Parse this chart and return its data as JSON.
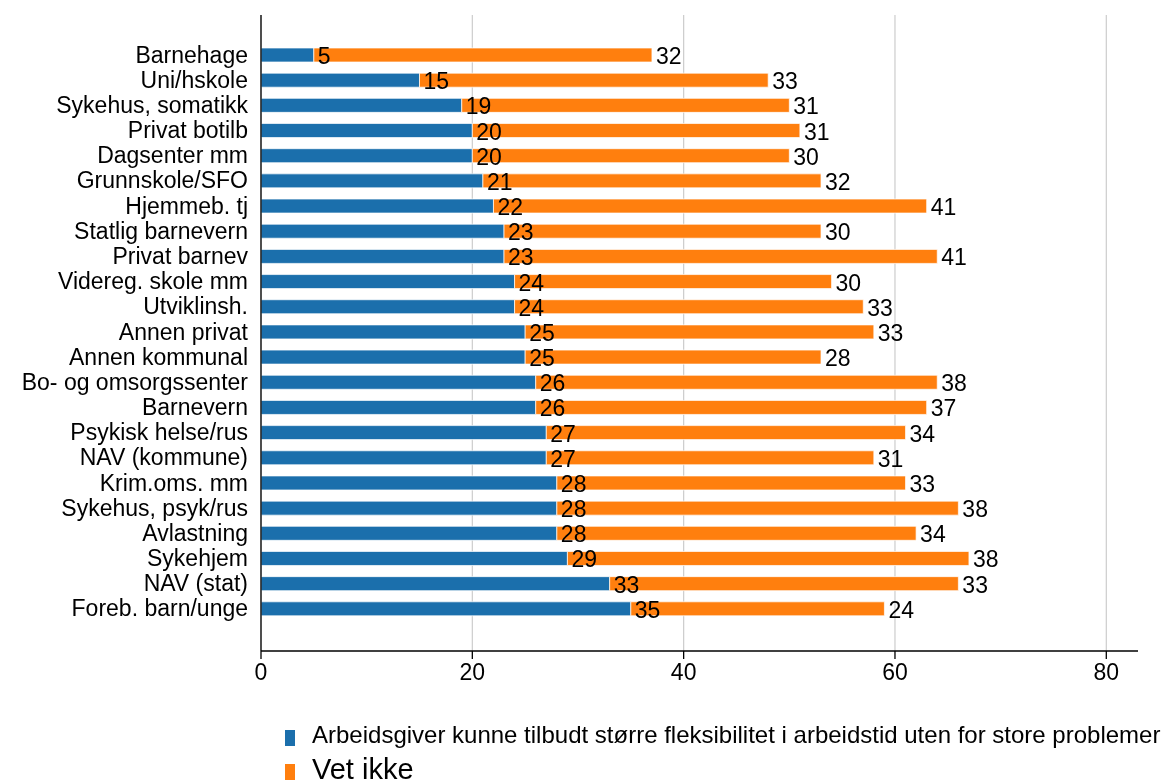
{
  "chart_data": {
    "type": "bar",
    "orientation": "horizontal",
    "stacked": true,
    "categories": [
      "Barnehage",
      "Uni/hskole",
      "Sykehus, somatikk",
      "Privat botilb",
      "Dagsenter mm",
      "Grunnskole/SFO",
      "Hjemmeb. tj",
      "Statlig barnevern",
      "Privat barnev",
      "Videreg. skole mm",
      "Utviklinsh.",
      "Annen privat",
      "Annen kommunal",
      "Bo- og omsorgssenter",
      "Barnevern",
      "Psykisk helse/rus",
      "NAV (kommune)",
      "Krim.oms. mm",
      "Sykehus, psyk/rus",
      "Avlastning",
      "Sykehjem",
      "NAV (stat)",
      "Foreb. barn/unge"
    ],
    "series": [
      {
        "name": "Arbeidsgiver kunne tilbudt større fleksibilitet i arbeidstid uten for store problemer",
        "color": "#1b6fac",
        "values": [
          5,
          15,
          19,
          20,
          20,
          21,
          22,
          23,
          23,
          24,
          24,
          25,
          25,
          26,
          26,
          27,
          27,
          28,
          28,
          28,
          29,
          33,
          35
        ]
      },
      {
        "name": "Vet ikke",
        "color": "#ff7f0e",
        "values": [
          32,
          33,
          31,
          31,
          30,
          32,
          41,
          30,
          41,
          30,
          33,
          33,
          28,
          38,
          37,
          34,
          31,
          33,
          38,
          34,
          38,
          33,
          24
        ]
      }
    ],
    "xlim": [
      0,
      83
    ],
    "xticks": [
      0,
      20,
      40,
      60,
      80
    ],
    "grid": "x",
    "legend": "bottom",
    "data_labels": true
  }
}
